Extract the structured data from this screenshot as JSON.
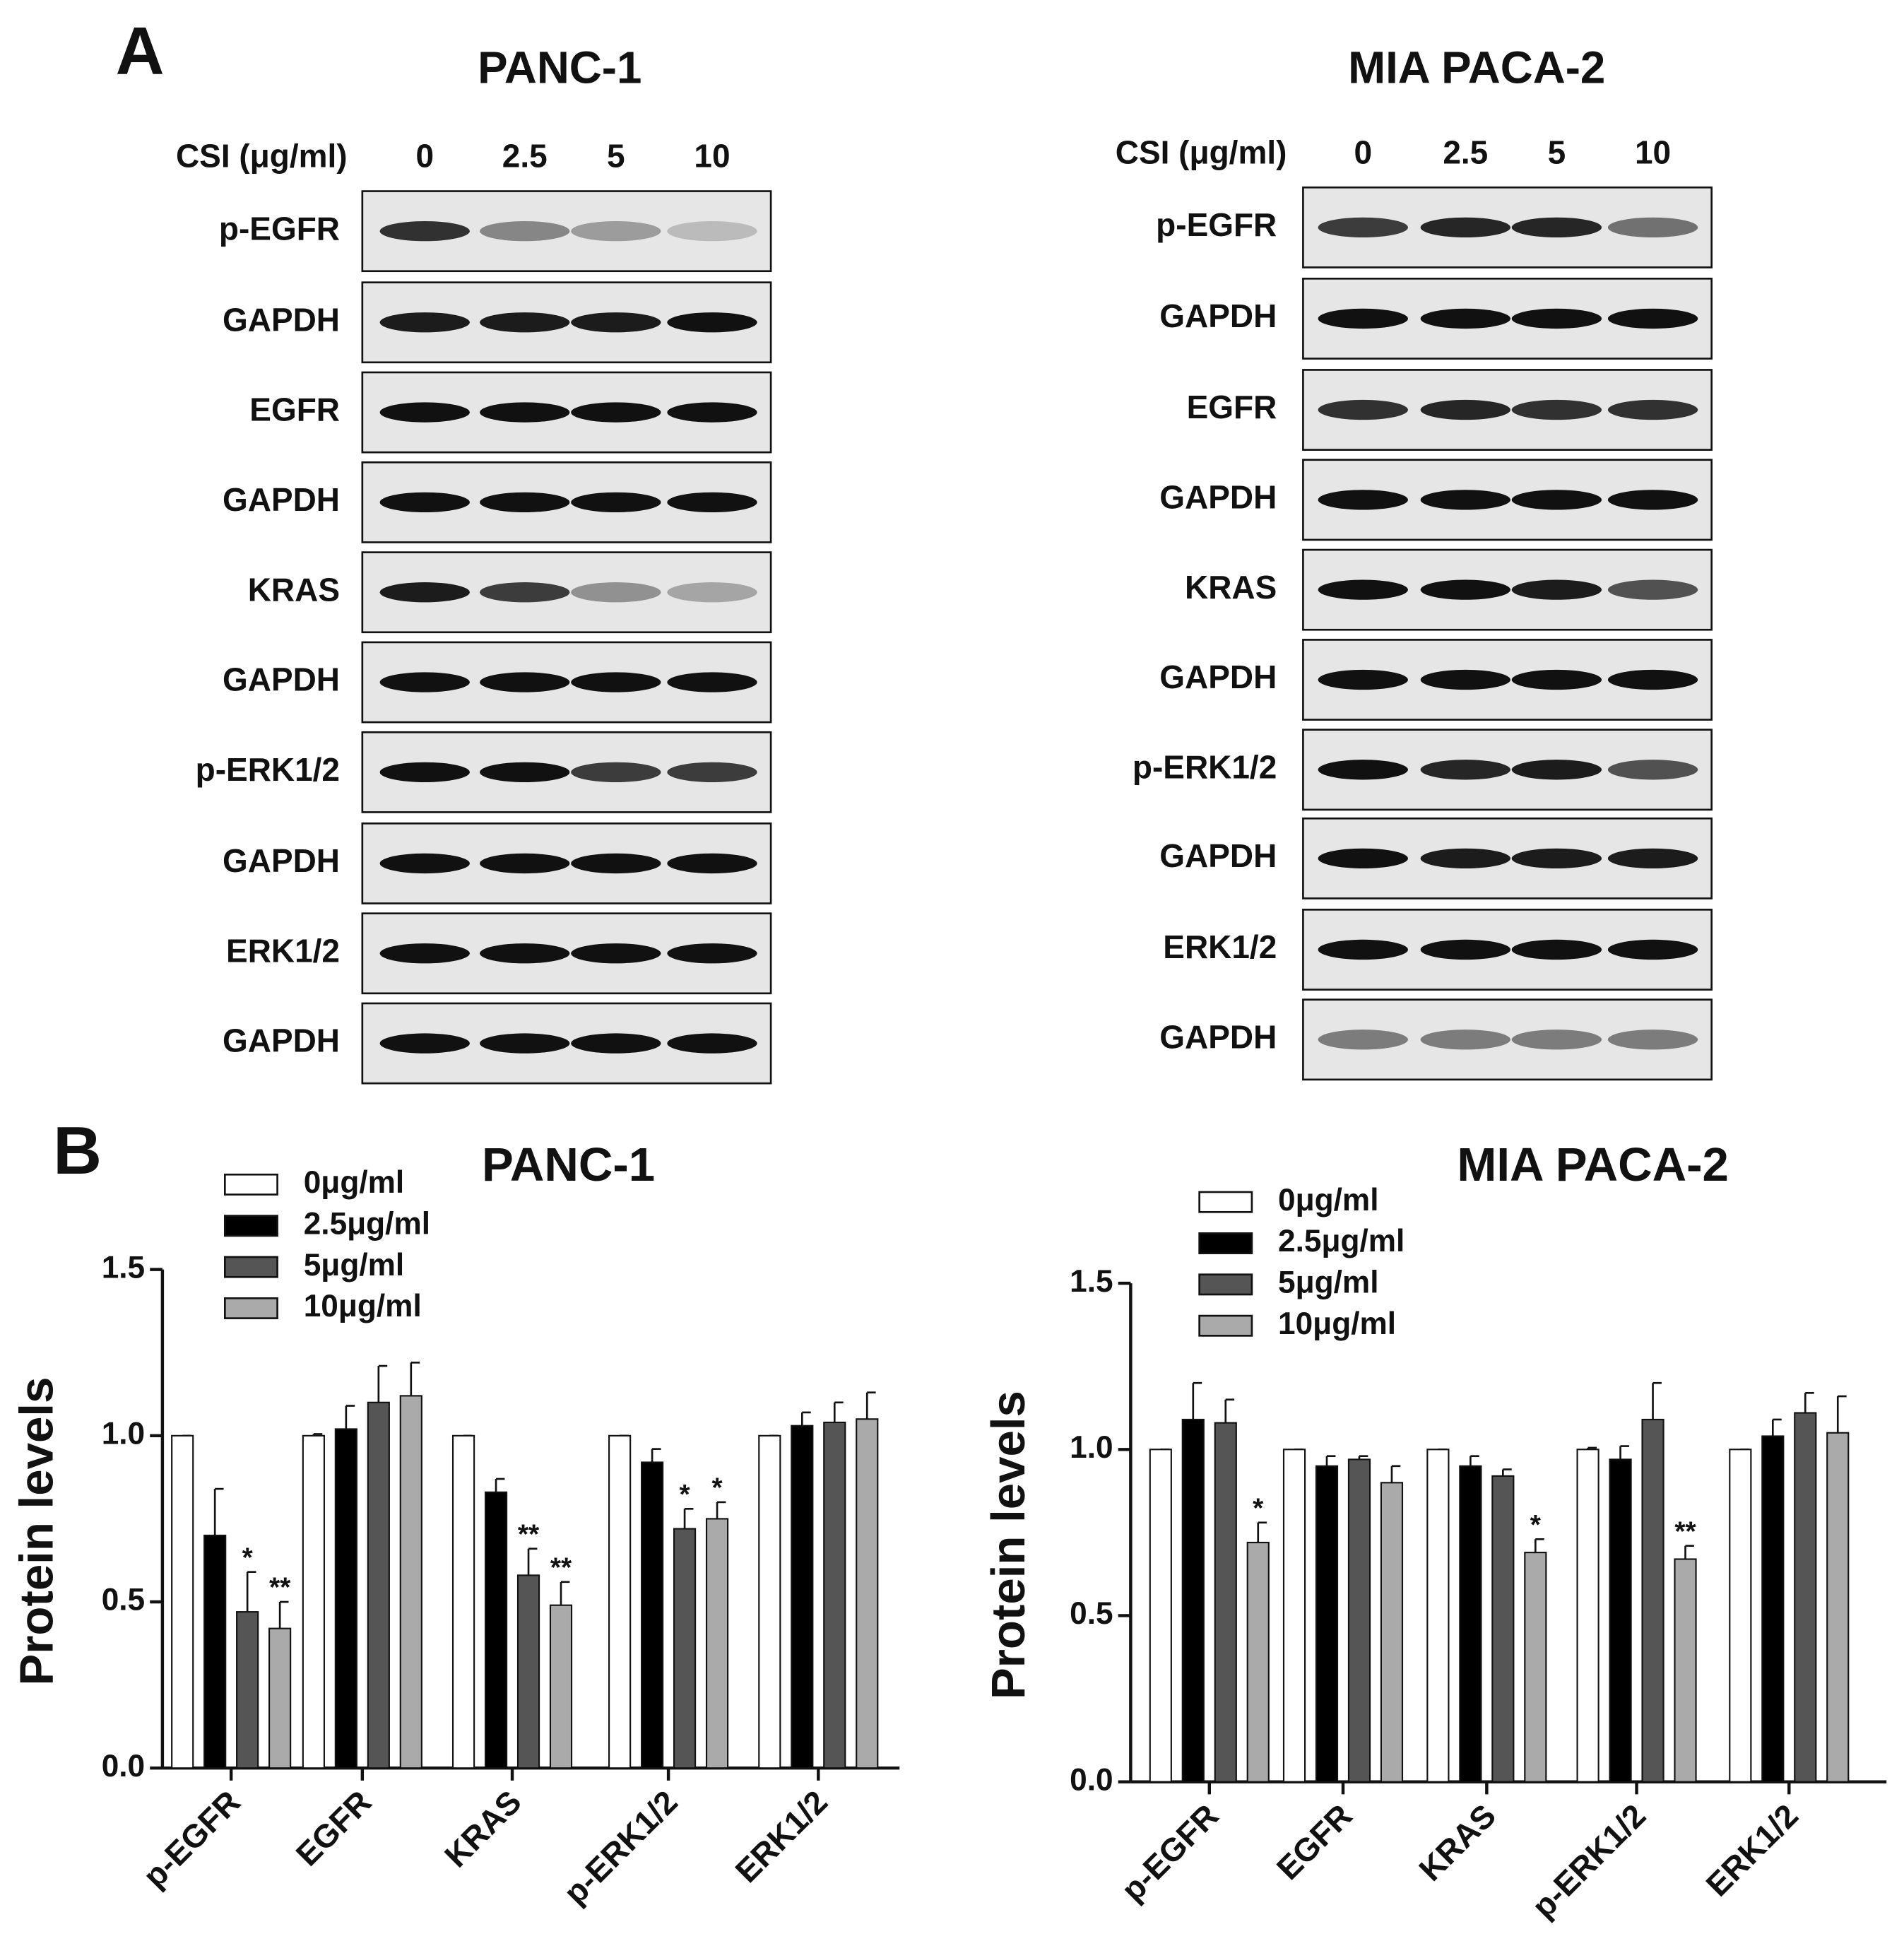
{
  "panel_a": {
    "label": "A",
    "blots": [
      {
        "title": "PANC-1",
        "dose_label": "CSI (μg/ml)",
        "doses": [
          "0",
          "2.5",
          "5",
          "10"
        ],
        "rows": [
          "p-EGFR",
          "GAPDH",
          "EGFR",
          "GAPDH",
          "KRAS",
          "GAPDH",
          "p-ERK1/2",
          "GAPDH",
          "ERK1/2",
          "GAPDH"
        ]
      },
      {
        "title": "MIA PACA-2",
        "dose_label": "CSI (μg/ml)",
        "doses": [
          "0",
          "2.5",
          "5",
          "10"
        ],
        "rows": [
          "p-EGFR",
          "GAPDH",
          "EGFR",
          "GAPDH",
          "KRAS",
          "GAPDH",
          "p-ERK1/2",
          "GAPDH",
          "ERK1/2",
          "GAPDH"
        ]
      }
    ]
  },
  "panel_b_label": "B",
  "chart_data": [
    {
      "type": "bar",
      "title": "PANC-1",
      "ylabel": "Protein levels",
      "categories": [
        "p-EGFR",
        "EGFR",
        "KRAS",
        "p-ERK1/2",
        "ERK1/2"
      ],
      "ylim": [
        0,
        1.5
      ],
      "yticks": [
        {
          "value": 0,
          "label": "0.0"
        },
        0.5,
        {
          "value": 1,
          "label": "1.0"
        },
        1.5
      ],
      "series": [
        {
          "name": "0μg/ml",
          "color": "#ffffff",
          "values": [
            1,
            1,
            1,
            1,
            1
          ],
          "errors": [
            0,
            0.005,
            0,
            0,
            0
          ],
          "labels": [
            null,
            null,
            null,
            null,
            null
          ]
        },
        {
          "name": "2.5μg/ml",
          "color": "#000000",
          "values": [
            0.7,
            1.02,
            0.83,
            0.92,
            1.03
          ],
          "errors": [
            0.14,
            0.07,
            0.04,
            0.04,
            0.04
          ],
          "labels": [
            null,
            null,
            null,
            null,
            null
          ]
        },
        {
          "name": "5μg/ml",
          "color": "#555555",
          "values": [
            0.47,
            1.1,
            0.58,
            0.72,
            1.04
          ],
          "errors": [
            0.12,
            0.11,
            0.08,
            0.06,
            0.06
          ],
          "labels": [
            "*",
            null,
            "**",
            "*",
            null
          ]
        },
        {
          "name": "10μg/ml",
          "color": "#aaaaaa",
          "values": [
            0.42,
            1.12,
            0.49,
            0.75,
            1.05
          ],
          "errors": [
            0.08,
            0.1,
            0.07,
            0.05,
            0.08
          ],
          "labels": [
            "**",
            null,
            "**",
            "*",
            null
          ]
        }
      ]
    },
    {
      "type": "bar",
      "title": "MIA PACA-2",
      "ylabel": "Protein levels",
      "categories": [
        "p-EGFR",
        "EGFR",
        "KRAS",
        "p-ERK1/2",
        "ERK1/2"
      ],
      "ylim": [
        0,
        1.5
      ],
      "yticks": [
        {
          "value": 0,
          "label": "0.0"
        },
        0.5,
        {
          "value": 1,
          "label": "1.0"
        },
        1.5
      ],
      "series": [
        {
          "name": "0μg/ml",
          "color": "#ffffff",
          "values": [
            1,
            1,
            1,
            1,
            1
          ],
          "errors": [
            0,
            0,
            0,
            0.005,
            0
          ],
          "labels": [
            null,
            null,
            null,
            null,
            null
          ]
        },
        {
          "name": "2.5μg/ml",
          "color": "#000000",
          "values": [
            1.09,
            0.95,
            0.95,
            0.97,
            1.04
          ],
          "errors": [
            0.11,
            0.03,
            0.03,
            0.04,
            0.05
          ],
          "labels": [
            null,
            null,
            null,
            null,
            null
          ]
        },
        {
          "name": "5μg/ml",
          "color": "#555555",
          "values": [
            1.08,
            0.97,
            0.92,
            1.09,
            1.11
          ],
          "errors": [
            0.07,
            0.01,
            0.02,
            0.11,
            0.06
          ],
          "labels": [
            null,
            null,
            null,
            null,
            null
          ]
        },
        {
          "name": "10μg/ml",
          "color": "#aaaaaa",
          "values": [
            0.72,
            0.9,
            0.69,
            0.67,
            1.05
          ],
          "errors": [
            0.06,
            0.05,
            0.04,
            0.04,
            0.11
          ],
          "labels": [
            "*",
            null,
            "*",
            "**",
            null
          ]
        }
      ]
    }
  ]
}
